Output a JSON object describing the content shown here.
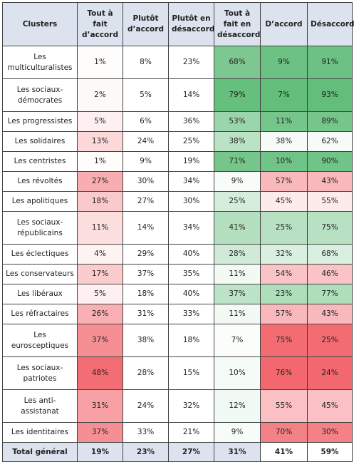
{
  "table": {
    "header": [
      "Clusters",
      "Tout à fait d’accord",
      "Plutôt d’accord",
      "Plutôt en désaccord",
      "Tout à fait en désaccord",
      "D’accord",
      "Désaccord"
    ],
    "rows": [
      [
        "Les multiculturalistes",
        "1%",
        "8%",
        "23%",
        "68%",
        "9%",
        "91%"
      ],
      [
        "Les sociaux-démocrates",
        "2%",
        "5%",
        "14%",
        "79%",
        "7%",
        "93%"
      ],
      [
        "Les progressistes",
        "5%",
        "6%",
        "36%",
        "53%",
        "11%",
        "89%"
      ],
      [
        "Les solidaires",
        "13%",
        "24%",
        "25%",
        "38%",
        "38%",
        "62%"
      ],
      [
        "Les centristes",
        "1%",
        "9%",
        "19%",
        "71%",
        "10%",
        "90%"
      ],
      [
        "Les révoltés",
        "27%",
        "30%",
        "34%",
        "9%",
        "57%",
        "43%"
      ],
      [
        "Les apolitiques",
        "18%",
        "27%",
        "30%",
        "25%",
        "45%",
        "55%"
      ],
      [
        "Les sociaux-républicains",
        "11%",
        "14%",
        "34%",
        "41%",
        "25%",
        "75%"
      ],
      [
        "Les éclectiques",
        "4%",
        "29%",
        "40%",
        "28%",
        "32%",
        "68%"
      ],
      [
        "Les conservateurs",
        "17%",
        "37%",
        "35%",
        "11%",
        "54%",
        "46%"
      ],
      [
        "Les libéraux",
        "5%",
        "18%",
        "40%",
        "37%",
        "23%",
        "77%"
      ],
      [
        "Les réfractaires",
        "26%",
        "31%",
        "33%",
        "11%",
        "57%",
        "43%"
      ],
      [
        "Les eurosceptiques",
        "37%",
        "38%",
        "18%",
        "7%",
        "75%",
        "25%"
      ],
      [
        "Les sociaux-patriotes",
        "48%",
        "28%",
        "15%",
        "10%",
        "76%",
        "24%"
      ],
      [
        "Les anti-assistanat",
        "31%",
        "24%",
        "32%",
        "12%",
        "55%",
        "45%"
      ],
      [
        "Les identitaires",
        "37%",
        "33%",
        "21%",
        "9%",
        "70%",
        "30%"
      ]
    ],
    "total": [
      "Total général",
      "19%",
      "23%",
      "27%",
      "31%",
      "41%",
      "59%"
    ]
  }
}
